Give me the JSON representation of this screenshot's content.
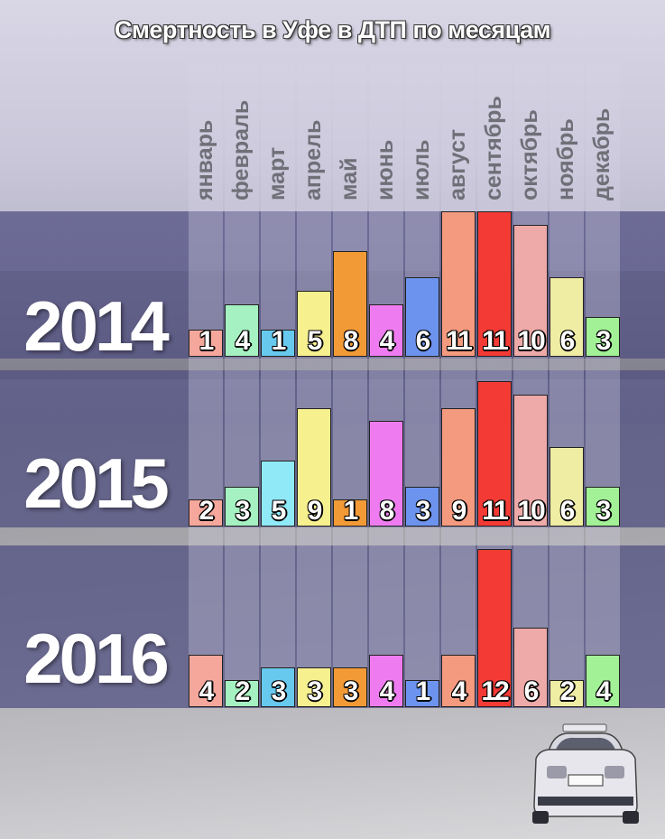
{
  "title": "Смертность в Уфе в ДТП по месяцам",
  "colors": {
    "band": "#4e4c80",
    "bar_border": "#222222",
    "month_label": "#6f6f78",
    "months": [
      "#f6a79c",
      "#a5f1c2",
      "#67c9ee",
      "#f7f08f",
      "#f29a36",
      "#ee7cf0",
      "#6c94ef",
      "#f49a7f",
      "#f43a35",
      "#eeaaa8",
      "#efeca4",
      "#a2f196"
    ],
    "overrides": {
      "2015": {
        "2": "#90e9f7",
        "6": "#6c94ef"
      }
    }
  },
  "icons": [
    "police-car-icon"
  ],
  "chart_data": {
    "type": "bar",
    "title": "Смертность в Уфе в ДТП по месяцам",
    "categories": [
      "январь",
      "февраль",
      "март",
      "апрель",
      "май",
      "июнь",
      "июль",
      "август",
      "сентябрь",
      "октябрь",
      "ноябрь",
      "декабрь"
    ],
    "series": [
      {
        "name": "2014",
        "values": [
          1,
          4,
          1,
          5,
          8,
          4,
          6,
          11,
          11,
          10,
          6,
          3
        ]
      },
      {
        "name": "2015",
        "values": [
          2,
          3,
          5,
          9,
          1,
          8,
          3,
          9,
          11,
          10,
          6,
          3
        ]
      },
      {
        "name": "2016",
        "values": [
          4,
          2,
          3,
          3,
          3,
          4,
          1,
          4,
          12,
          6,
          2,
          4
        ]
      }
    ],
    "xlabel": "",
    "ylabel": "",
    "grid": false,
    "legend": "none"
  }
}
